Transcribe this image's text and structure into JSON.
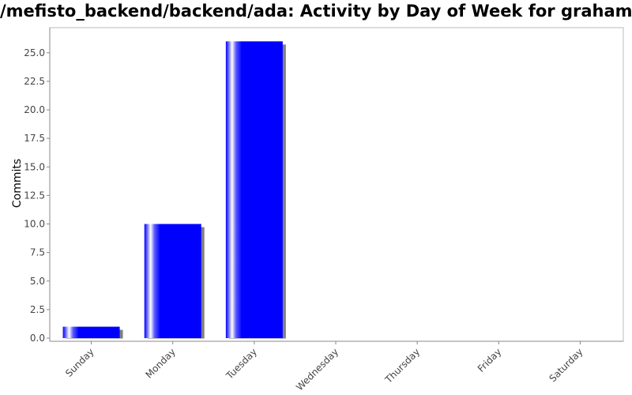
{
  "chart_data": {
    "type": "bar",
    "title": "/mefisto_backend/backend/ada: Activity by Day of Week for graham_s",
    "xlabel": "",
    "ylabel": "Commits",
    "categories": [
      "Sunday",
      "Monday",
      "Tuesday",
      "Wednesday",
      "Thursday",
      "Friday",
      "Saturday"
    ],
    "values": [
      1,
      10,
      26,
      0,
      0,
      0,
      0
    ],
    "ylim": [
      0,
      27.2
    ],
    "yticks": [
      "0.0",
      "2.5",
      "5.0",
      "7.5",
      "10.0",
      "12.5",
      "15.0",
      "17.5",
      "20.0",
      "22.5",
      "25.0"
    ],
    "bar_color": "#0000ff",
    "shadow_color": "#808080",
    "axis_color": "#888888",
    "grid": false
  }
}
